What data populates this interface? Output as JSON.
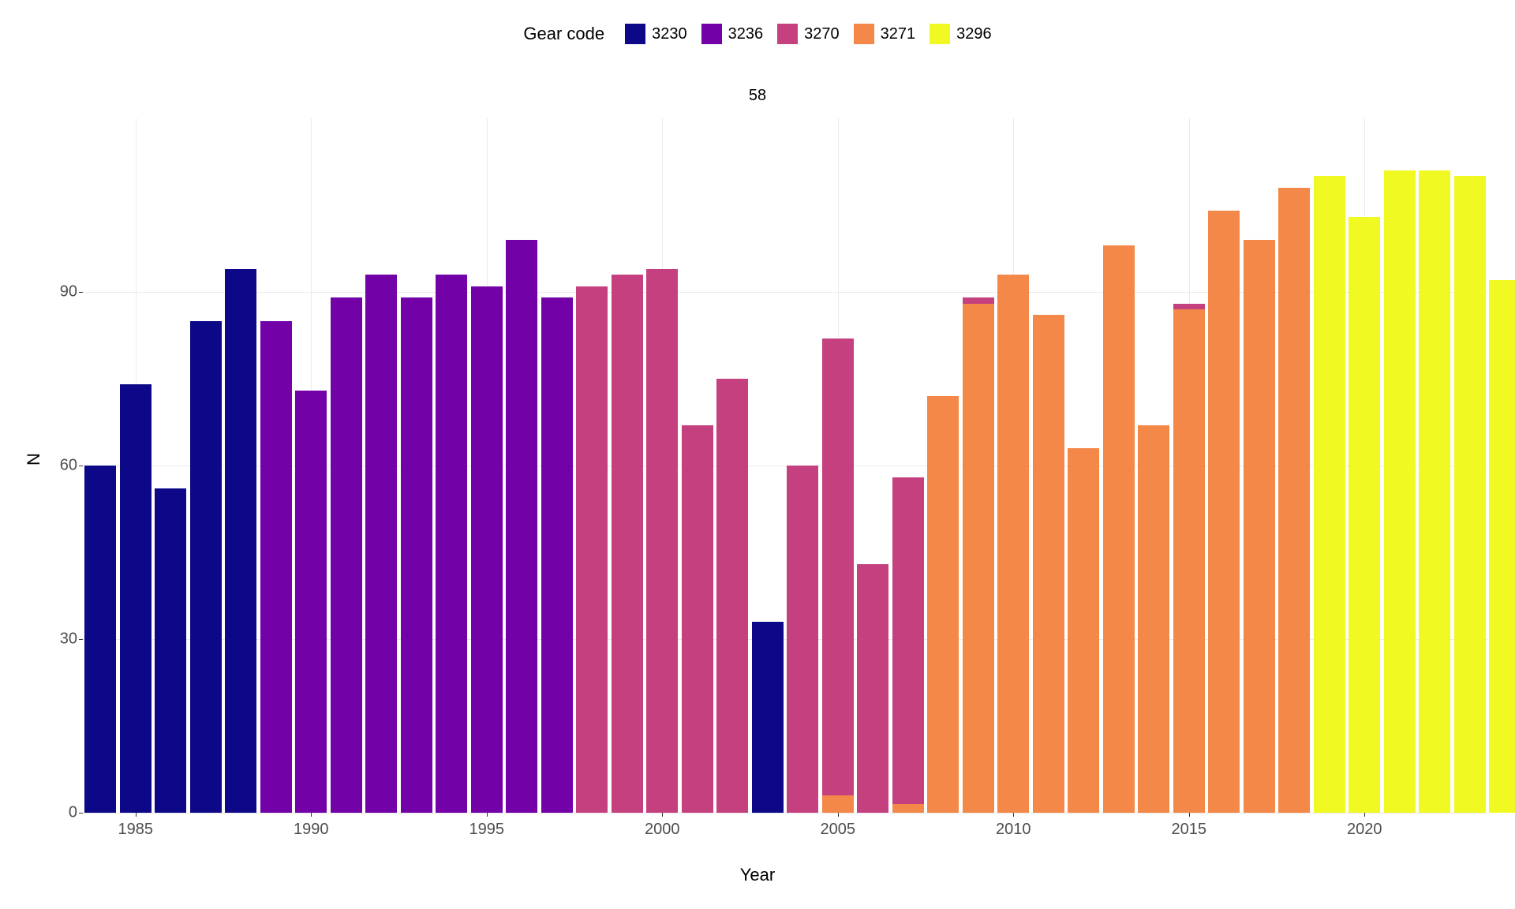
{
  "chart": {
    "type": "stacked-bar",
    "facet_title": "58",
    "legend_title": "Gear code",
    "xlabel": "Year",
    "ylabel": "N",
    "background_color": "#ffffff",
    "grid_color": "#ebebeb",
    "series": [
      {
        "code": "3230",
        "color": "#0d0887"
      },
      {
        "code": "3236",
        "color": "#7201a8"
      },
      {
        "code": "3270",
        "color": "#c5407e"
      },
      {
        "code": "3271",
        "color": "#f48849"
      },
      {
        "code": "3296",
        "color": "#f0f921"
      }
    ],
    "y_ticks": [
      0,
      30,
      60,
      90
    ],
    "x_ticks": [
      1985,
      1990,
      1995,
      2000,
      2005,
      2010,
      2015,
      2020
    ],
    "ylim": [
      0,
      120
    ],
    "xlim": [
      1983.5,
      2023.5
    ],
    "bar_width": 0.9,
    "label_fontsize": 22,
    "tick_fontsize": 20,
    "legend_fontsize": 20,
    "data": [
      {
        "year": 1984,
        "segments": [
          {
            "code": "3230",
            "value": 60
          }
        ]
      },
      {
        "year": 1985,
        "segments": [
          {
            "code": "3230",
            "value": 74
          }
        ]
      },
      {
        "year": 1986,
        "segments": [
          {
            "code": "3230",
            "value": 56
          }
        ]
      },
      {
        "year": 1987,
        "segments": [
          {
            "code": "3230",
            "value": 85
          }
        ]
      },
      {
        "year": 1988,
        "segments": [
          {
            "code": "3230",
            "value": 94
          }
        ]
      },
      {
        "year": 1989,
        "segments": [
          {
            "code": "3236",
            "value": 85
          }
        ]
      },
      {
        "year": 1990,
        "segments": [
          {
            "code": "3236",
            "value": 73
          }
        ]
      },
      {
        "year": 1991,
        "segments": [
          {
            "code": "3236",
            "value": 89
          }
        ]
      },
      {
        "year": 1992,
        "segments": [
          {
            "code": "3236",
            "value": 93
          }
        ]
      },
      {
        "year": 1993,
        "segments": [
          {
            "code": "3236",
            "value": 89
          }
        ]
      },
      {
        "year": 1994,
        "segments": [
          {
            "code": "3236",
            "value": 93
          }
        ]
      },
      {
        "year": 1995,
        "segments": [
          {
            "code": "3236",
            "value": 91
          }
        ]
      },
      {
        "year": 1996,
        "segments": [
          {
            "code": "3236",
            "value": 99
          }
        ]
      },
      {
        "year": 1997,
        "segments": [
          {
            "code": "3236",
            "value": 89
          }
        ]
      },
      {
        "year": 1998,
        "segments": [
          {
            "code": "3270",
            "value": 91
          }
        ]
      },
      {
        "year": 1999,
        "segments": [
          {
            "code": "3270",
            "value": 93
          }
        ]
      },
      {
        "year": 2000,
        "segments": [
          {
            "code": "3270",
            "value": 94
          }
        ]
      },
      {
        "year": 2001,
        "segments": [
          {
            "code": "3270",
            "value": 67
          }
        ]
      },
      {
        "year": 2002,
        "segments": [
          {
            "code": "3270",
            "value": 75
          }
        ]
      },
      {
        "year": 2003,
        "segments": [
          {
            "code": "3230",
            "value": 33
          }
        ]
      },
      {
        "year": 2004,
        "segments": [
          {
            "code": "3270",
            "value": 60
          }
        ]
      },
      {
        "year": 2005,
        "segments": [
          {
            "code": "3271",
            "value": 3
          },
          {
            "code": "3270",
            "value": 79
          }
        ]
      },
      {
        "year": 2006,
        "segments": [
          {
            "code": "3270",
            "value": 43
          }
        ]
      },
      {
        "year": 2007,
        "segments": [
          {
            "code": "3271",
            "value": 1.5
          },
          {
            "code": "3270",
            "value": 56.5
          }
        ]
      },
      {
        "year": 2008,
        "segments": [
          {
            "code": "3271",
            "value": 72
          }
        ]
      },
      {
        "year": 2009,
        "segments": [
          {
            "code": "3271",
            "value": 88
          },
          {
            "code": "3270",
            "value": 1
          }
        ]
      },
      {
        "year": 2010,
        "segments": [
          {
            "code": "3271",
            "value": 93
          }
        ]
      },
      {
        "year": 2011,
        "segments": [
          {
            "code": "3271",
            "value": 86
          }
        ]
      },
      {
        "year": 2012,
        "segments": [
          {
            "code": "3271",
            "value": 63
          }
        ]
      },
      {
        "year": 2013,
        "segments": [
          {
            "code": "3271",
            "value": 98
          }
        ]
      },
      {
        "year": 2014,
        "segments": [
          {
            "code": "3271",
            "value": 67
          }
        ]
      },
      {
        "year": 2015,
        "segments": [
          {
            "code": "3271",
            "value": 87
          },
          {
            "code": "3270",
            "value": 1
          }
        ]
      },
      {
        "year": 2016,
        "segments": [
          {
            "code": "3271",
            "value": 104
          }
        ]
      },
      {
        "year": 2017,
        "segments": [
          {
            "code": "3271",
            "value": 99
          }
        ]
      },
      {
        "year": 2018,
        "segments": [
          {
            "code": "3271",
            "value": 108
          }
        ]
      },
      {
        "year": 2019,
        "segments": [
          {
            "code": "3296",
            "value": 110
          }
        ]
      },
      {
        "year": 2020,
        "segments": [
          {
            "code": "3296",
            "value": 103
          }
        ]
      },
      {
        "year": 2021,
        "segments": [
          {
            "code": "3296",
            "value": 111
          }
        ]
      },
      {
        "year": 2022,
        "segments": [
          {
            "code": "3296",
            "value": 111
          }
        ]
      },
      {
        "year": 2023,
        "segments": [
          {
            "code": "3296",
            "value": 110
          }
        ]
      },
      {
        "year": 2024,
        "segments": [
          {
            "code": "3296",
            "value": 92
          }
        ]
      }
    ]
  }
}
